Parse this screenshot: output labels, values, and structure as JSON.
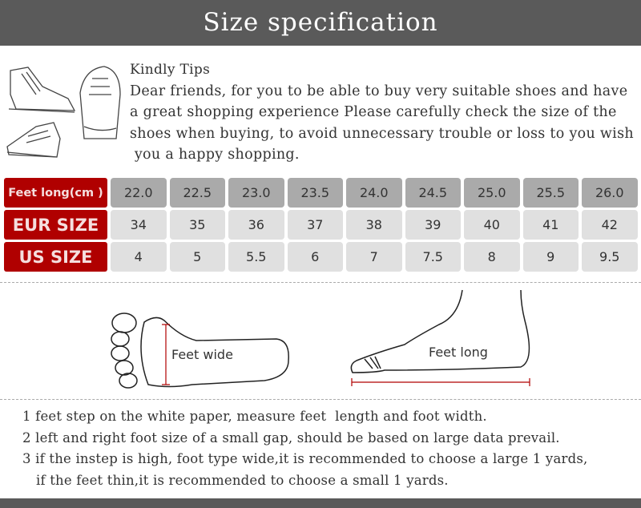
{
  "header": {
    "title": "Size specification"
  },
  "tips": {
    "title": "Kindly Tips",
    "lines": [
      "Dear friends, for you to be able to buy very suitable shoes and have",
      "a great shopping experience Please carefully check the size of the",
      "shoes when buying, to avoid unnecessary trouble or loss to you wish",
      " you a happy shopping."
    ]
  },
  "table": {
    "rows": [
      {
        "label": "Feet long(cm )",
        "values": [
          "22.0",
          "22.5",
          "23.0",
          "23.5",
          "24.0",
          "24.5",
          "25.0",
          "25.5",
          "26.0"
        ]
      },
      {
        "label": "EUR SIZE",
        "values": [
          "34",
          "35",
          "36",
          "37",
          "38",
          "39",
          "40",
          "41",
          "42"
        ]
      },
      {
        "label": "US SIZE",
        "values": [
          "4",
          "5",
          "5.5",
          "6",
          "7",
          "7.5",
          "8",
          "9",
          "9.5"
        ]
      }
    ]
  },
  "diagram": {
    "width_label": "Feet wide",
    "length_label": "Feet long",
    "accent": "#b00000"
  },
  "instructions": [
    "1 feet step on the white paper, measure feet  length and foot width.",
    "2 left and right foot size of a small gap, should be based on large data prevail.",
    "3 if the instep is high, foot type wide,it is recommended to choose a large 1 yards,",
    "if the feet thin,it is recommended to choose a small 1 yards."
  ]
}
